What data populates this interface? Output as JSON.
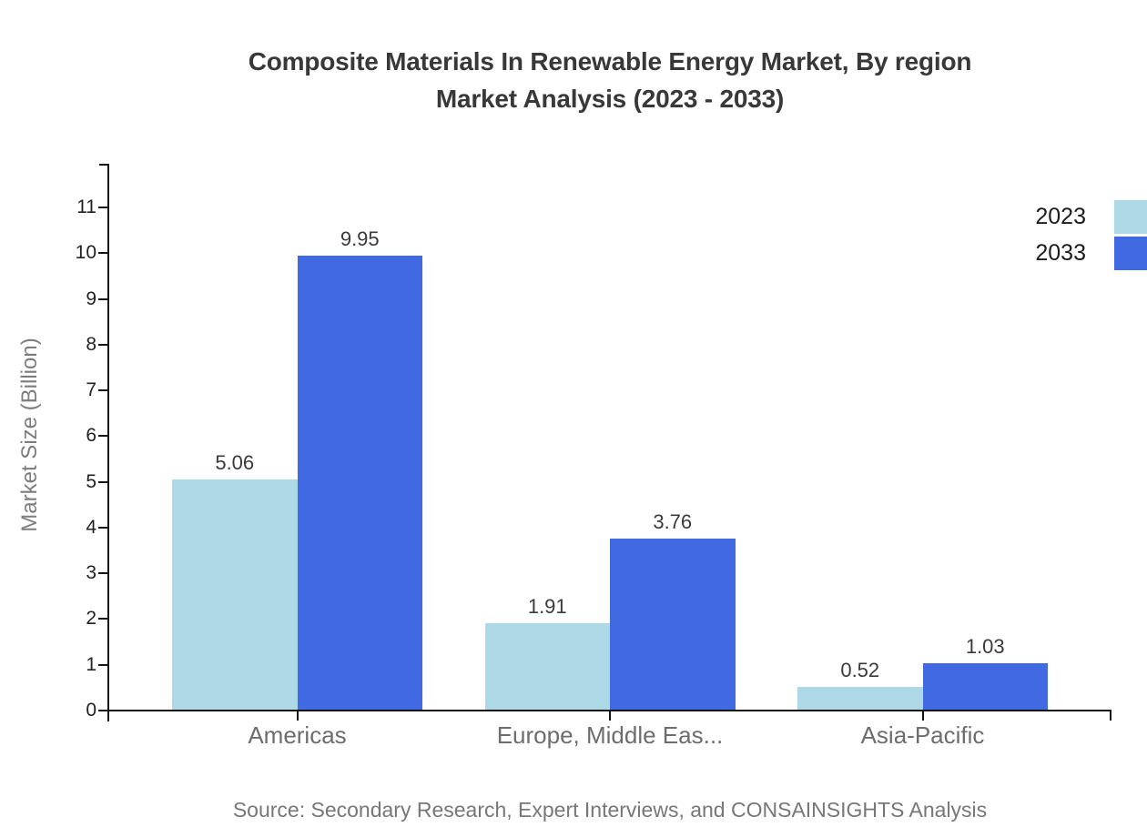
{
  "title": {
    "line1": "Composite Materials In Renewable Energy Market, By region",
    "line2": "Market Analysis (2023 - 2033)"
  },
  "source_note": "Source: Secondary Research, Expert Interviews, and CONSAINSIGHTS Analysis",
  "legend": {
    "items": [
      {
        "label": "2023",
        "color": "#ADD8E6"
      },
      {
        "label": "2033",
        "color": "#4169E1"
      }
    ]
  },
  "colors": {
    "series_2023": "#ADD8E6",
    "series_2033": "#4169E1",
    "axis_line": "#151515",
    "title_text": "#383838",
    "category_label": "#6d6d6d",
    "value_label": "#3a3a3a",
    "y_axis_title": "#7d7d7d",
    "source_text": "#777777"
  },
  "chart_data": {
    "type": "bar",
    "title": "Composite Materials In Renewable Energy Market, By region Market Analysis (2023 - 2033)",
    "categories": [
      "Americas",
      "Europe, Middle Eas...",
      "Asia-Pacific"
    ],
    "series": [
      {
        "name": "2023",
        "color": "#ADD8E6",
        "values": [
          5.06,
          1.91,
          0.52
        ]
      },
      {
        "name": "2033",
        "color": "#4169E1",
        "values": [
          9.95,
          3.76,
          1.03
        ]
      }
    ],
    "xlabel": "",
    "ylabel": "Market Size (Billion)",
    "ylim": [
      0,
      11
    ],
    "yticks": [
      0,
      1,
      2,
      3,
      4,
      5,
      6,
      7,
      8,
      9,
      10,
      11
    ],
    "grid": false,
    "legend_position": "top-right",
    "value_labels": true
  }
}
